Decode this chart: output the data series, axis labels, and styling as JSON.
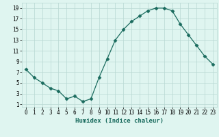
{
  "x": [
    0,
    1,
    2,
    3,
    4,
    5,
    6,
    7,
    8,
    9,
    10,
    11,
    12,
    13,
    14,
    15,
    16,
    17,
    18,
    19,
    20,
    21,
    22,
    23
  ],
  "y": [
    7.5,
    6,
    5,
    4,
    3.5,
    2,
    2.5,
    1.5,
    2,
    6,
    9.5,
    13,
    15,
    16.5,
    17.5,
    18.5,
    19,
    19,
    18.5,
    16,
    14,
    12,
    10,
    8.5
  ],
  "xlabel": "Humidex (Indice chaleur)",
  "xlim": [
    -0.5,
    23.5
  ],
  "ylim": [
    0.5,
    20
  ],
  "yticks": [
    1,
    3,
    5,
    7,
    9,
    11,
    13,
    15,
    17,
    19
  ],
  "xticks": [
    0,
    1,
    2,
    3,
    4,
    5,
    6,
    7,
    8,
    9,
    10,
    11,
    12,
    13,
    14,
    15,
    16,
    17,
    18,
    19,
    20,
    21,
    22,
    23
  ],
  "line_color": "#1a6b5e",
  "marker": "D",
  "marker_size": 2.5,
  "bg_color": "#dff5f0",
  "grid_color": "#b8d8d2",
  "label_fontsize": 6.5,
  "tick_fontsize": 5.5
}
